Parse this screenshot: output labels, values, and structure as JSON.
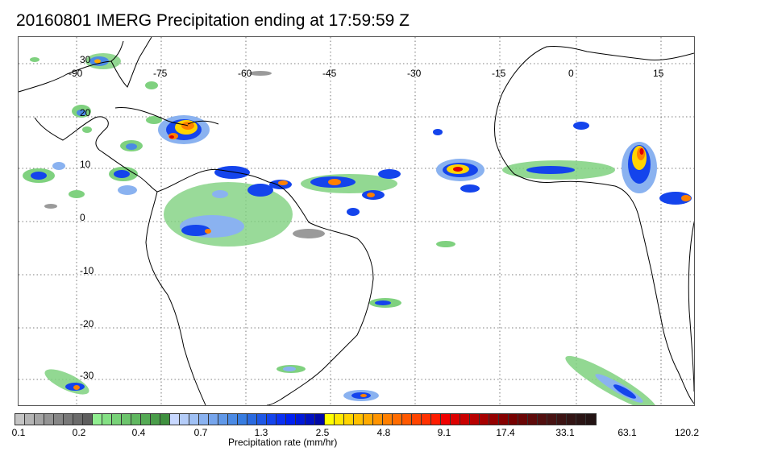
{
  "title": "20160801 IMERG Precipitation ending at 17:59:59 Z",
  "map": {
    "lon_labels": [
      "-90",
      "-75",
      "-60",
      "-45",
      "-30",
      "-15",
      "0",
      "15"
    ],
    "lat_labels": [
      "30",
      "20",
      "10",
      "0",
      "-10",
      "-20",
      "-30"
    ],
    "land_outline_color": "#000000",
    "grid_line_style": "dotted"
  },
  "colorbar": {
    "label": "Precipitation rate (mm/hr)",
    "ticks": [
      "0.1",
      "0.2",
      "0.4",
      "0.7",
      "1.3",
      "2.5",
      "4.8",
      "9.1",
      "17.4",
      "33.1",
      "63.1",
      "120.2"
    ],
    "colors": [
      "#c4c4c4",
      "#b4b4b4",
      "#a4a4a4",
      "#949494",
      "#868686",
      "#787878",
      "#6b6b6b",
      "#5e5e5e",
      "#90ee90",
      "#84e084",
      "#78d278",
      "#6cc46c",
      "#60b760",
      "#55aa55",
      "#4a9d4a",
      "#3f903f",
      "#c8d8ff",
      "#b4ccf8",
      "#9fc0f4",
      "#8ab2f0",
      "#76a5ec",
      "#6098e8",
      "#4b8ae4",
      "#377ce0",
      "#2a6ae0",
      "#1f58e6",
      "#1444ec",
      "#0a30f2",
      "#0020f0",
      "#0018d8",
      "#0010c0",
      "#0008a8",
      "#ffff00",
      "#ffe800",
      "#ffd400",
      "#ffc000",
      "#ffaa00",
      "#ff9400",
      "#ff8000",
      "#ff6c00",
      "#ff5800",
      "#ff4400",
      "#ff3000",
      "#ff1c00",
      "#f00000",
      "#dd0000",
      "#ca0000",
      "#b80000",
      "#a60000",
      "#950000",
      "#850000",
      "#760000",
      "#6a0505",
      "#5e0a0a",
      "#520f0f",
      "#471212",
      "#3c1313",
      "#321414",
      "#2a1414",
      "#231313"
    ]
  },
  "legend_colors": {
    "gray": "#9a9a9a",
    "green": "#7fd17f",
    "light_blue": "#8ab2f0",
    "blue": "#1444ec",
    "yellow": "#ffd400",
    "orange": "#ff8000",
    "red": "#e00000"
  }
}
